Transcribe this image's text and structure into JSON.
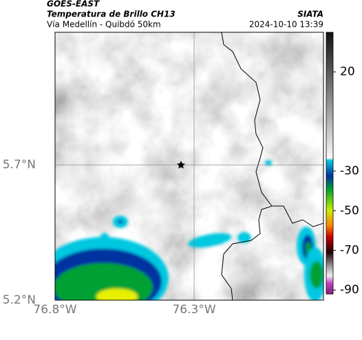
{
  "header": {
    "title": "GOES-EAST",
    "subtitle": "Temperatura de Brillo CH13",
    "location": "Vía Medellín - Quibdó 50km",
    "source": "SIATA",
    "timestamp": "2024-10-10 13:39"
  },
  "map": {
    "xlim": [
      -76.8,
      -75.835
    ],
    "ylim": [
      5.2,
      6.19
    ],
    "xticks": [
      {
        "value": -76.8,
        "label": "76.8°W"
      },
      {
        "value": -76.3,
        "label": "76.3°W"
      }
    ],
    "yticks": [
      {
        "value": 5.7,
        "label": "5.7°N"
      },
      {
        "value": 5.2,
        "label": "5.2°N"
      }
    ]
  },
  "colorbar": {
    "lim": [
      40,
      -92
    ],
    "ticks": [
      20,
      -30,
      -50,
      -70,
      -90
    ]
  }
}
